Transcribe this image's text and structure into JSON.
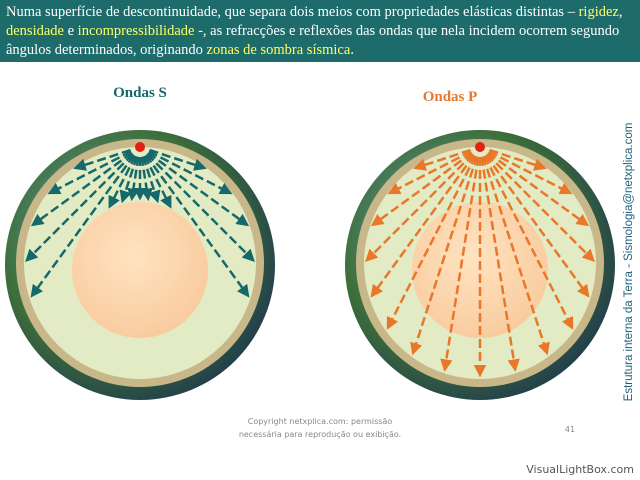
{
  "header": {
    "segments": [
      {
        "text": "Numa superfície de descontinuidade, que separa dois meios com propriedades elásticas distintas – ",
        "highlight": false
      },
      {
        "text": "rigidez",
        "highlight": true
      },
      {
        "text": ", ",
        "highlight": false
      },
      {
        "text": "densidade",
        "highlight": true
      },
      {
        "text": " e ",
        "highlight": false
      },
      {
        "text": "incompressibilidade",
        "highlight": true
      },
      {
        "text": " -, as refracções e reflexões das ondas que nela incidem ocorrem segundo ângulos determinados, originando ",
        "highlight": false
      },
      {
        "text": "zonas de sombra sísmica",
        "highlight": true
      },
      {
        "text": ".",
        "highlight": false
      }
    ]
  },
  "diagrams": [
    {
      "label": "Ondas S",
      "wave": "S"
    },
    {
      "label": "Ondas P",
      "wave": "P"
    }
  ],
  "side_text": "Estrutura interna da Terra - Sismologia@netxplica.com",
  "footer": {
    "copyright": [
      "Copyright netxplica.com: permissão",
      "necessária para reprodução ou exibição."
    ],
    "page_number": "41"
  },
  "watermark": "VisualLightBox.com"
}
